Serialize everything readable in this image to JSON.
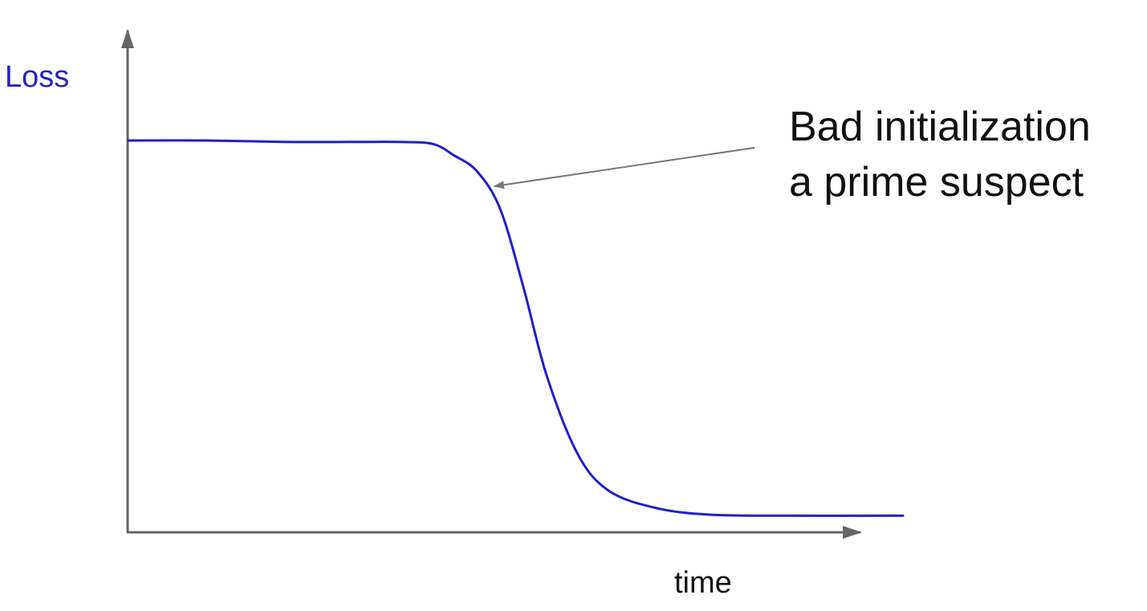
{
  "chart_data": {
    "type": "line",
    "ylabel": "Loss",
    "xlabel": "time",
    "grid": false,
    "series": [
      {
        "color": "#1f1fcc",
        "points": [
          [
            0.0,
            0.8
          ],
          [
            0.1,
            0.8
          ],
          [
            0.2,
            0.797
          ],
          [
            0.29,
            0.797
          ],
          [
            0.35,
            0.797
          ],
          [
            0.393,
            0.793
          ],
          [
            0.42,
            0.77
          ],
          [
            0.45,
            0.737
          ],
          [
            0.48,
            0.66
          ],
          [
            0.51,
            0.5
          ],
          [
            0.54,
            0.32
          ],
          [
            0.58,
            0.16
          ],
          [
            0.62,
            0.085
          ],
          [
            0.68,
            0.05
          ],
          [
            0.75,
            0.036
          ],
          [
            0.85,
            0.034
          ],
          [
            1.0,
            0.034
          ]
        ]
      }
    ],
    "annotations": [
      {
        "lines": [
          "Bad initialization",
          "a prime suspect"
        ],
        "arrow_color": "#777777"
      }
    ]
  }
}
